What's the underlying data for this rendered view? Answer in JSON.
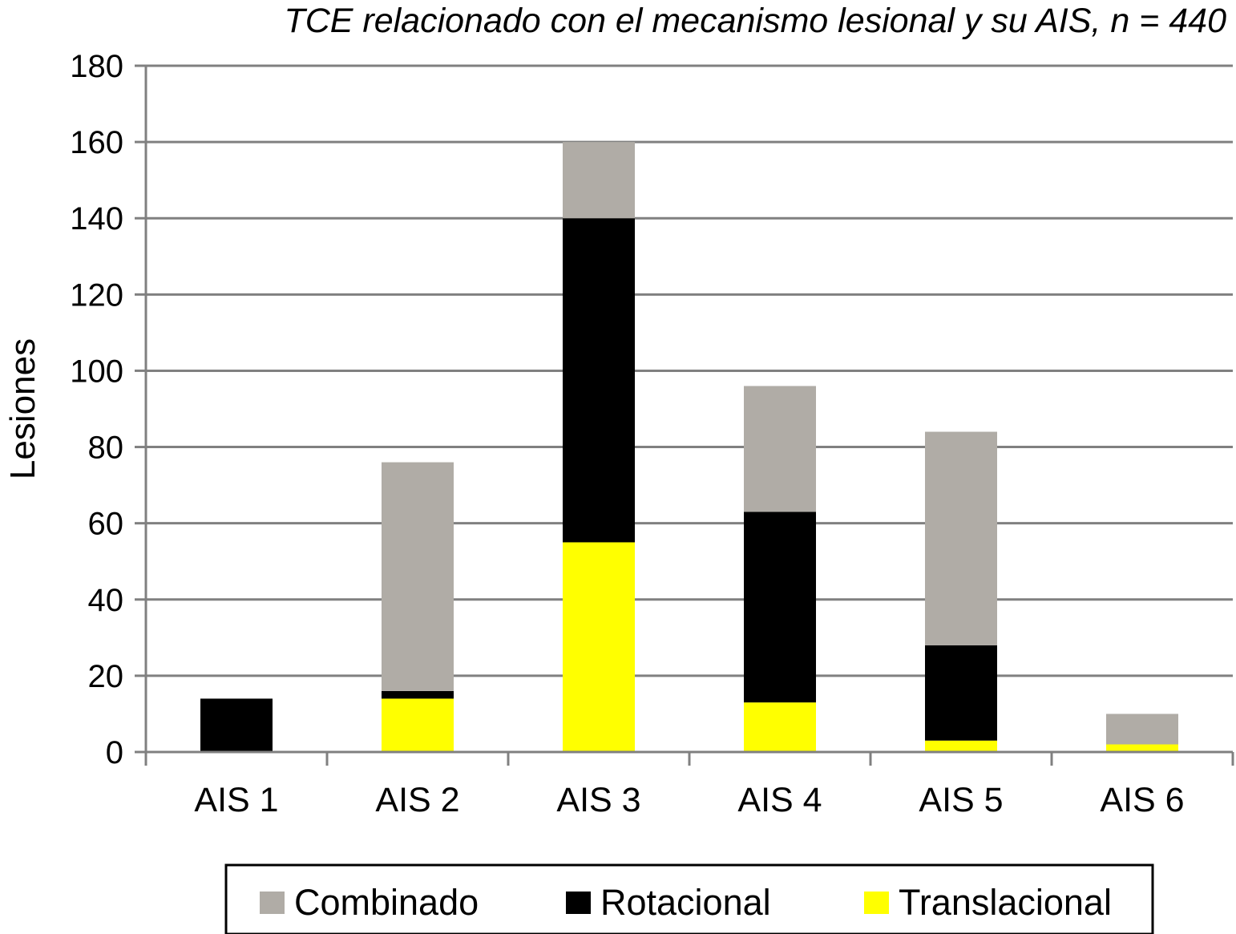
{
  "chart_data": {
    "type": "bar",
    "stacked": true,
    "title": "TCE relacionado con el mecanismo lesional y su AIS, n = 440",
    "xlabel": "",
    "ylabel": "Lesiones",
    "categories": [
      "AIS 1",
      "AIS 2",
      "AIS 3",
      "AIS 4",
      "AIS 5",
      "AIS 6"
    ],
    "ylim": [
      0,
      180
    ],
    "yticks": [
      0,
      20,
      40,
      60,
      80,
      100,
      120,
      140,
      160,
      180
    ],
    "grid": true,
    "legend_position": "bottom",
    "series": [
      {
        "name": "Translacional",
        "color": "#ffff00",
        "values": [
          0,
          14,
          55,
          13,
          3,
          2
        ]
      },
      {
        "name": "Rotacional",
        "color": "#000000",
        "values": [
          14,
          2,
          85,
          50,
          25,
          0
        ]
      },
      {
        "name": "Combinado",
        "color": "#b0aca6",
        "values": [
          0,
          60,
          20,
          33,
          56,
          8
        ]
      }
    ],
    "legend_order": [
      "Combinado",
      "Rotacional",
      "Translacional"
    ]
  }
}
